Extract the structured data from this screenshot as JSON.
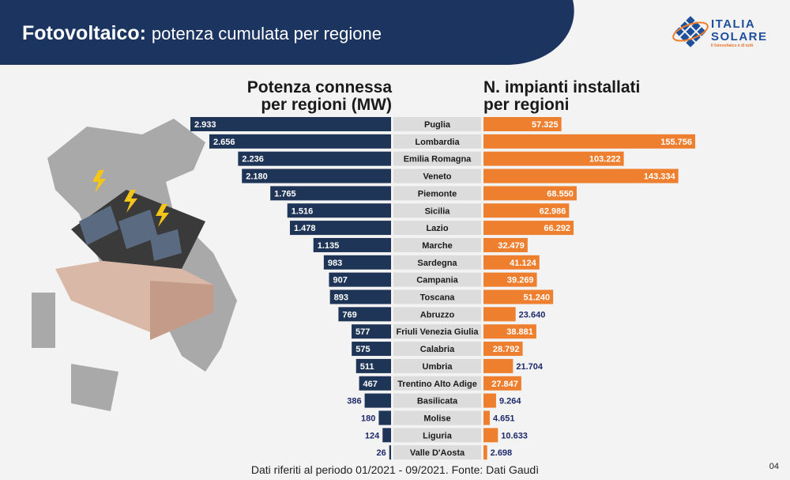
{
  "header": {
    "title_bold": "Fotovoltaico:",
    "title_rest": "potenza cumulata per regione"
  },
  "logo": {
    "line1": "ITALIA",
    "line2": "SOLARE",
    "tagline": "Il fotovoltaico è di tutti"
  },
  "colors": {
    "header_bg": "#1c3560",
    "power_bar": "#1e3557",
    "count_bar": "#ee7f2f",
    "label_bg": "#dcdcdc",
    "outside_label": "#1e2a6b"
  },
  "chart_data": {
    "type": "bar",
    "orientation": "horizontal-butterfly",
    "categories": [
      "Puglia",
      "Lombardia",
      "Emilia Romagna",
      "Veneto",
      "Piemonte",
      "Sicilia",
      "Lazio",
      "Marche",
      "Sardegna",
      "Campania",
      "Toscana",
      "Abruzzo",
      "Friuli Venezia Giulia",
      "Calabria",
      "Umbria",
      "Trentino Alto Adige",
      "Basilicata",
      "Molise",
      "Liguria",
      "Valle D'Aosta"
    ],
    "series": [
      {
        "name": "Potenza connessa per regioni (MW)",
        "values": [
          2933,
          2656,
          2236,
          2180,
          1765,
          1516,
          1478,
          1135,
          983,
          907,
          893,
          769,
          577,
          575,
          511,
          467,
          386,
          180,
          124,
          26
        ],
        "labels": [
          "2.933",
          "2.656",
          "2.236",
          "2.180",
          "1.765",
          "1.516",
          "1.478",
          "1.135",
          "983",
          "907",
          "893",
          "769",
          "577",
          "575",
          "511",
          "467",
          "386",
          "180",
          "124",
          "26"
        ]
      },
      {
        "name": "N. impianti installati per regioni",
        "values": [
          57325,
          155756,
          103222,
          143334,
          68550,
          62986,
          66292,
          32479,
          41124,
          39269,
          51240,
          23640,
          38881,
          28792,
          21704,
          27847,
          9264,
          4651,
          10633,
          2698
        ],
        "labels": [
          "57.325",
          "155.756",
          "103.222",
          "143.334",
          "68.550",
          "62.986",
          "66.292",
          "32.479",
          "41.124",
          "39.269",
          "51.240",
          "23.640",
          "38.881",
          "28.792",
          "21.704",
          "27.847",
          "9.264",
          "4.651",
          "10.633",
          "2.698"
        ]
      }
    ],
    "title_left_1": "Potenza connessa",
    "title_left_2": "per regioni (MW)",
    "title_right_1": "N. impianti installati",
    "title_right_2": "per regioni"
  },
  "footer": {
    "source": "Dati riferiti al periodo 01/2021 - 09/2021. Fonte: Dati Gaudì",
    "page": "04"
  }
}
